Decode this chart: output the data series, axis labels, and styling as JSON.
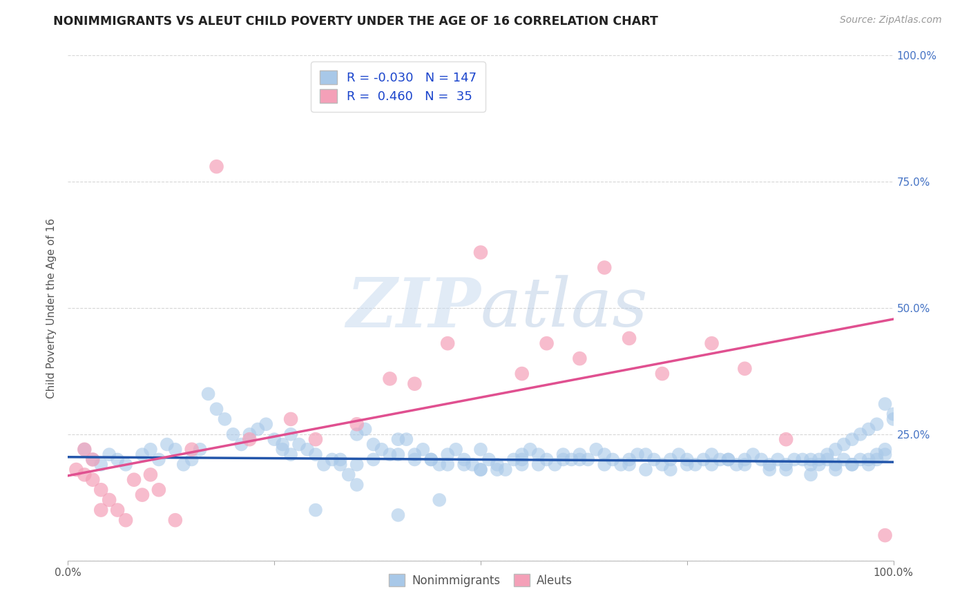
{
  "title": "NONIMMIGRANTS VS ALEUT CHILD POVERTY UNDER THE AGE OF 16 CORRELATION CHART",
  "source": "Source: ZipAtlas.com",
  "ylabel": "Child Poverty Under the Age of 16",
  "xlim": [
    0.0,
    1.0
  ],
  "ylim": [
    0.0,
    1.0
  ],
  "xticks": [
    0.0,
    0.25,
    0.5,
    0.75,
    1.0
  ],
  "yticks": [
    0.0,
    0.25,
    0.5,
    0.75,
    1.0
  ],
  "xticklabels": [
    "0.0%",
    "",
    "",
    "",
    "100.0%"
  ],
  "yticklabels_right": [
    "",
    "25.0%",
    "50.0%",
    "75.0%",
    "100.0%"
  ],
  "watermark_zip": "ZIP",
  "watermark_atlas": "atlas",
  "blue_color": "#a8c8e8",
  "pink_color": "#f4a0b8",
  "blue_line_color": "#2255aa",
  "pink_line_color": "#e05090",
  "blue_r": "-0.030",
  "blue_n": "147",
  "pink_r": "0.460",
  "pink_n": "35",
  "blue_scatter_x": [
    0.02,
    0.03,
    0.04,
    0.05,
    0.06,
    0.07,
    0.09,
    0.1,
    0.11,
    0.12,
    0.13,
    0.14,
    0.15,
    0.16,
    0.17,
    0.18,
    0.19,
    0.2,
    0.21,
    0.22,
    0.23,
    0.24,
    0.25,
    0.26,
    0.27,
    0.28,
    0.29,
    0.3,
    0.31,
    0.32,
    0.33,
    0.34,
    0.35,
    0.36,
    0.37,
    0.38,
    0.39,
    0.4,
    0.41,
    0.42,
    0.43,
    0.44,
    0.45,
    0.46,
    0.47,
    0.48,
    0.49,
    0.5,
    0.51,
    0.52,
    0.53,
    0.54,
    0.55,
    0.56,
    0.57,
    0.58,
    0.59,
    0.6,
    0.61,
    0.62,
    0.63,
    0.64,
    0.65,
    0.66,
    0.67,
    0.68,
    0.69,
    0.7,
    0.71,
    0.72,
    0.73,
    0.74,
    0.75,
    0.76,
    0.77,
    0.78,
    0.79,
    0.8,
    0.81,
    0.82,
    0.83,
    0.84,
    0.85,
    0.86,
    0.87,
    0.88,
    0.89,
    0.9,
    0.91,
    0.92,
    0.93,
    0.94,
    0.95,
    0.96,
    0.97,
    0.98,
    0.99,
    1.0,
    0.26,
    0.27,
    0.3,
    0.33,
    0.35,
    0.37,
    0.4,
    0.42,
    0.44,
    0.46,
    0.48,
    0.5,
    0.52,
    0.55,
    0.57,
    0.6,
    0.62,
    0.65,
    0.68,
    0.7,
    0.73,
    0.75,
    0.78,
    0.8,
    0.82,
    0.85,
    0.87,
    0.9,
    0.93,
    0.95,
    0.97,
    0.98,
    0.99,
    1.0,
    0.99,
    0.98,
    0.97,
    0.96,
    0.95,
    0.94,
    0.93,
    0.92,
    0.91,
    0.9,
    0.5,
    0.55,
    0.35,
    0.45,
    0.4
  ],
  "blue_scatter_y": [
    0.22,
    0.2,
    0.19,
    0.21,
    0.2,
    0.19,
    0.21,
    0.22,
    0.2,
    0.23,
    0.22,
    0.19,
    0.2,
    0.22,
    0.33,
    0.3,
    0.28,
    0.25,
    0.23,
    0.25,
    0.26,
    0.27,
    0.24,
    0.23,
    0.25,
    0.23,
    0.22,
    0.1,
    0.19,
    0.2,
    0.19,
    0.17,
    0.25,
    0.26,
    0.23,
    0.22,
    0.21,
    0.24,
    0.24,
    0.21,
    0.22,
    0.2,
    0.19,
    0.21,
    0.22,
    0.2,
    0.19,
    0.18,
    0.2,
    0.19,
    0.18,
    0.2,
    0.21,
    0.22,
    0.21,
    0.2,
    0.19,
    0.21,
    0.2,
    0.21,
    0.2,
    0.22,
    0.21,
    0.2,
    0.19,
    0.2,
    0.21,
    0.21,
    0.2,
    0.19,
    0.2,
    0.21,
    0.2,
    0.19,
    0.2,
    0.21,
    0.2,
    0.2,
    0.19,
    0.2,
    0.21,
    0.2,
    0.19,
    0.2,
    0.19,
    0.2,
    0.2,
    0.2,
    0.19,
    0.2,
    0.19,
    0.2,
    0.19,
    0.2,
    0.19,
    0.2,
    0.21,
    0.28,
    0.22,
    0.21,
    0.21,
    0.2,
    0.19,
    0.2,
    0.21,
    0.2,
    0.2,
    0.19,
    0.19,
    0.18,
    0.18,
    0.19,
    0.19,
    0.2,
    0.2,
    0.19,
    0.19,
    0.18,
    0.18,
    0.19,
    0.19,
    0.2,
    0.19,
    0.18,
    0.18,
    0.17,
    0.18,
    0.19,
    0.2,
    0.21,
    0.22,
    0.29,
    0.31,
    0.27,
    0.26,
    0.25,
    0.24,
    0.23,
    0.22,
    0.21,
    0.2,
    0.19,
    0.22,
    0.2,
    0.15,
    0.12,
    0.09
  ],
  "pink_scatter_x": [
    0.01,
    0.02,
    0.02,
    0.03,
    0.03,
    0.04,
    0.04,
    0.05,
    0.06,
    0.07,
    0.08,
    0.09,
    0.1,
    0.11,
    0.13,
    0.15,
    0.18,
    0.22,
    0.27,
    0.3,
    0.35,
    0.39,
    0.42,
    0.46,
    0.5,
    0.55,
    0.58,
    0.62,
    0.65,
    0.68,
    0.72,
    0.78,
    0.82,
    0.87,
    0.99
  ],
  "pink_scatter_y": [
    0.18,
    0.22,
    0.17,
    0.2,
    0.16,
    0.14,
    0.1,
    0.12,
    0.1,
    0.08,
    0.16,
    0.13,
    0.17,
    0.14,
    0.08,
    0.22,
    0.78,
    0.24,
    0.28,
    0.24,
    0.27,
    0.36,
    0.35,
    0.43,
    0.61,
    0.37,
    0.43,
    0.4,
    0.58,
    0.44,
    0.37,
    0.43,
    0.38,
    0.24,
    0.05
  ],
  "blue_line_x": [
    0.0,
    1.0
  ],
  "blue_line_y": [
    0.205,
    0.195
  ],
  "pink_line_x": [
    0.0,
    1.0
  ],
  "pink_line_y": [
    0.168,
    0.478
  ],
  "grid_color": "#cccccc",
  "background_color": "#ffffff",
  "title_fontsize": 12.5,
  "axis_label_fontsize": 11,
  "tick_fontsize": 11,
  "legend_fontsize": 13,
  "source_fontsize": 10,
  "tick_color": "#4472c4"
}
